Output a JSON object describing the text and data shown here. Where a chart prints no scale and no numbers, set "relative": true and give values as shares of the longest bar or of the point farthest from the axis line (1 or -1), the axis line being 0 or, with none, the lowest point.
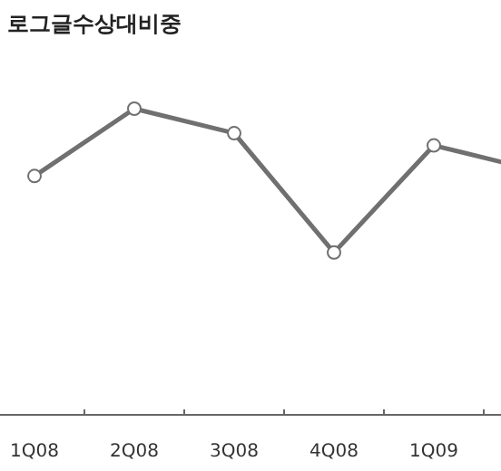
{
  "chart_data": {
    "type": "line",
    "title": "로그글수상대비중",
    "relative": true,
    "categories": [
      "1Q08",
      "2Q08",
      "3Q08",
      "4Q08",
      "1Q09",
      null
    ],
    "series": [
      {
        "color": "#707070",
        "values": [
          0.78,
          1,
          0.92,
          0.53,
          0.88,
          0.8
        ]
      }
    ],
    "marker": "circle",
    "line_style": "solid"
  }
}
